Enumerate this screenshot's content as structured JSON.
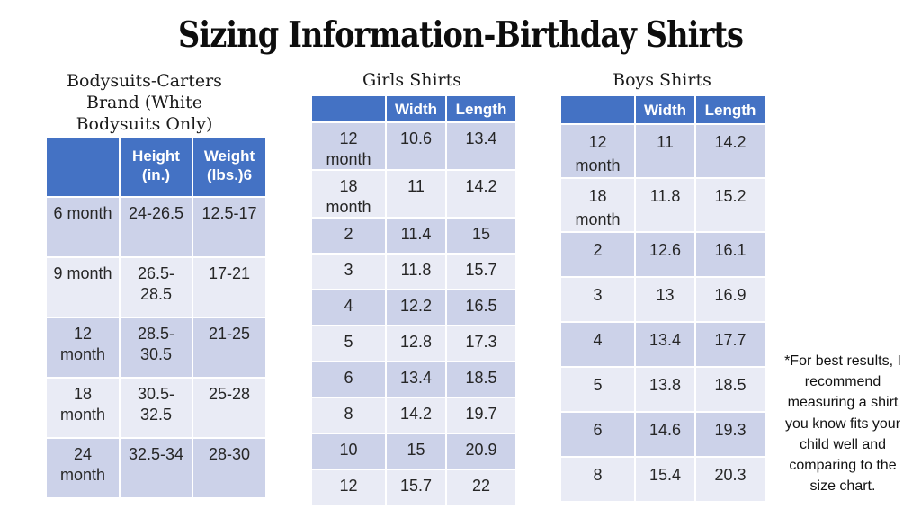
{
  "title": "Sizing Information-Birthday Shirts",
  "colors": {
    "header_bg": "#4472C4",
    "header_text": "#FFFFFF",
    "band_dark": "#CCD2E9",
    "band_light": "#E9EBF5",
    "body_text": "#262626"
  },
  "tables": [
    {
      "caption": "Bodysuits-Carters Brand (White Bodysuits Only)",
      "columns": [
        "",
        "Height (in.)",
        "Weight (lbs.)6"
      ],
      "rows": [
        [
          "6 month",
          "24-26.5",
          "12.5-17"
        ],
        [
          "9 month",
          "26.5-28.5",
          "17-21"
        ],
        [
          "12 month",
          "28.5-30.5",
          "21-25"
        ],
        [
          "18 month",
          "30.5-32.5",
          "25-28"
        ],
        [
          "24 month",
          "32.5-34",
          "28-30"
        ]
      ]
    },
    {
      "caption": "Girls Shirts",
      "columns": [
        "",
        "Width",
        "Length"
      ],
      "rows": [
        [
          "12 month",
          "10.6",
          "13.4"
        ],
        [
          "18 month",
          "11",
          "14.2"
        ],
        [
          "2",
          "11.4",
          "15"
        ],
        [
          "3",
          "11.8",
          "15.7"
        ],
        [
          "4",
          "12.2",
          "16.5"
        ],
        [
          "5",
          "12.8",
          "17.3"
        ],
        [
          "6",
          "13.4",
          "18.5"
        ],
        [
          "8",
          "14.2",
          "19.7"
        ],
        [
          "10",
          "15",
          "20.9"
        ],
        [
          "12",
          "15.7",
          "22"
        ]
      ]
    },
    {
      "caption": "Boys Shirts",
      "columns": [
        "",
        "Width",
        "Length"
      ],
      "rows": [
        [
          "12 month",
          "11",
          "14.2"
        ],
        [
          "18 month",
          "11.8",
          "15.2"
        ],
        [
          "2",
          "12.6",
          "16.1"
        ],
        [
          "3",
          "13",
          "16.9"
        ],
        [
          "4",
          "13.4",
          "17.7"
        ],
        [
          "5",
          "13.8",
          "18.5"
        ],
        [
          "6",
          "14.6",
          "19.3"
        ],
        [
          "8",
          "15.4",
          "20.3"
        ]
      ]
    }
  ],
  "note": "*For best results, I recommend measuring a shirt you know fits your child well and comparing to the size chart."
}
